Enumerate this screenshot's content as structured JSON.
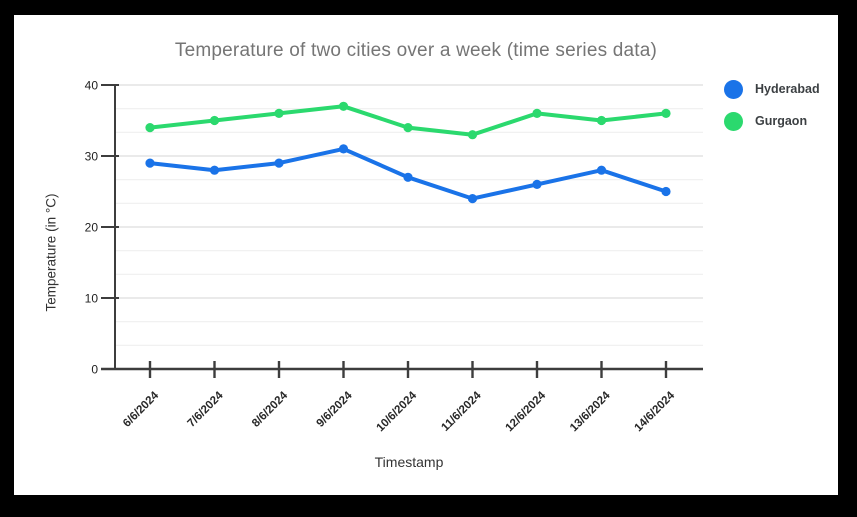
{
  "window": {
    "background": "#000000",
    "card_background": "#ffffff"
  },
  "chart_data": {
    "type": "line",
    "title": "Temperature of two cities over a week (time series data)",
    "xlabel": "Timestamp",
    "ylabel": "Temperature (in °C)",
    "categories": [
      "6/6/2024",
      "7/6/2024",
      "8/6/2024",
      "9/6/2024",
      "10/6/2024",
      "11/6/2024",
      "12/6/2024",
      "13/6/2024",
      "14/6/2024"
    ],
    "series": [
      {
        "name": "Hyderabad",
        "color": "#1a73e8",
        "values": [
          29,
          28,
          29,
          31,
          27,
          24,
          26,
          28,
          25
        ]
      },
      {
        "name": "Gurgaon",
        "color": "#2bd96e",
        "values": [
          34,
          35,
          36,
          37,
          34,
          33,
          36,
          35,
          36
        ]
      }
    ],
    "ylim": [
      0,
      40
    ],
    "y_ticks": [
      0,
      10,
      20,
      30,
      40
    ],
    "minor_grid_divisions_per_major": 3,
    "grid": "horizontal",
    "legend_position": "top-right",
    "x_tick_label_rotation_deg": -45,
    "colors": {
      "title_text": "#757575",
      "axis_line": "#3d3d3d",
      "tick_label": "#1f1f1f",
      "x_tick_label": "#282828",
      "major_grid": "#e3e3e3",
      "minor_grid": "#efefef",
      "legend_text": "#3c4043"
    }
  }
}
